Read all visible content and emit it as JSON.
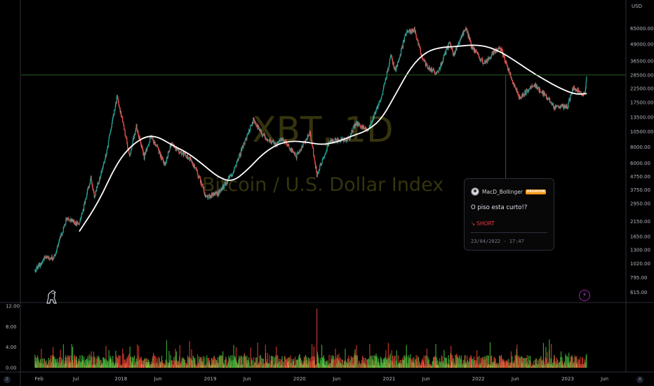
{
  "watermark": {
    "symbol": "XBT, 1D",
    "description": "Bitcoin / U.S. Dollar Index"
  },
  "idea": {
    "author": "MacD_Bollinger",
    "badge": "PREMIUM",
    "title": "O piso esta curto!?",
    "direction": "SHORT",
    "direction_glyph": "↘",
    "date": "23/04/2022 - 17:47"
  },
  "price_axis": {
    "currency": "USD",
    "labels": [
      "65000.00",
      "49000.00",
      "36500.00",
      "28500.00",
      "22500.00",
      "17500.00",
      "13500.00",
      "10500.00",
      "8000.00",
      "6000.00",
      "4750.00",
      "3750.00",
      "2950.00",
      "2150.00",
      "1650.00",
      "1300.00",
      "1020.00",
      "795.00",
      "615.00"
    ]
  },
  "volume_axis": {
    "labels": [
      "12.00",
      "8.00",
      "4.00",
      "0.00"
    ]
  },
  "time_axis": {
    "labels": [
      "Feb",
      "Jul",
      "2018",
      "Jun",
      "2019",
      "Jun",
      "2020",
      "Jun",
      "2021",
      "Jun",
      "2022",
      "Jun",
      "2023",
      "Jun"
    ]
  },
  "corner_buttons": {
    "left": "Z",
    "right": "A"
  },
  "colors": {
    "up": "#26a69a",
    "down": "#ef5350",
    "up_vol": "#3fae3a",
    "down_vol": "#d43a2e",
    "ma": "#ffffff",
    "crosshair": "#2e6b2e",
    "background": "#000000"
  },
  "chart_data": {
    "type": "candlestick",
    "symbol": "XBT",
    "interval": "1D",
    "y_scale": "log",
    "ylim": [
      560,
      90000
    ],
    "x_range": [
      "2017-01-01",
      "2023-07-01"
    ],
    "grid": false,
    "price_path": [
      {
        "date": "2017-01-15",
        "close": 900
      },
      {
        "date": "2017-03-01",
        "close": 1150
      },
      {
        "date": "2017-04-01",
        "close": 1100
      },
      {
        "date": "2017-05-25",
        "close": 2300
      },
      {
        "date": "2017-07-15",
        "close": 2000
      },
      {
        "date": "2017-09-01",
        "close": 4700
      },
      {
        "date": "2017-09-15",
        "close": 3300
      },
      {
        "date": "2017-11-01",
        "close": 7000
      },
      {
        "date": "2017-12-17",
        "close": 19500
      },
      {
        "date": "2018-02-06",
        "close": 6900
      },
      {
        "date": "2018-03-05",
        "close": 11500
      },
      {
        "date": "2018-04-06",
        "close": 6700
      },
      {
        "date": "2018-05-05",
        "close": 9800
      },
      {
        "date": "2018-06-28",
        "close": 5900
      },
      {
        "date": "2018-07-25",
        "close": 8300
      },
      {
        "date": "2018-10-15",
        "close": 6400
      },
      {
        "date": "2018-11-20",
        "close": 4500
      },
      {
        "date": "2018-12-15",
        "close": 3300
      },
      {
        "date": "2019-02-01",
        "close": 3500
      },
      {
        "date": "2019-04-02",
        "close": 5000
      },
      {
        "date": "2019-06-26",
        "close": 12900
      },
      {
        "date": "2019-08-01",
        "close": 10000
      },
      {
        "date": "2019-09-25",
        "close": 8300
      },
      {
        "date": "2019-10-26",
        "close": 9300
      },
      {
        "date": "2019-12-17",
        "close": 6700
      },
      {
        "date": "2020-02-13",
        "close": 10300
      },
      {
        "date": "2020-03-12",
        "close": 4900
      },
      {
        "date": "2020-05-01",
        "close": 8800
      },
      {
        "date": "2020-07-20",
        "close": 9200
      },
      {
        "date": "2020-08-17",
        "close": 12200
      },
      {
        "date": "2020-10-08",
        "close": 10800
      },
      {
        "date": "2020-11-30",
        "close": 19000
      },
      {
        "date": "2021-01-08",
        "close": 40000
      },
      {
        "date": "2021-01-27",
        "close": 30500
      },
      {
        "date": "2021-03-13",
        "close": 61000
      },
      {
        "date": "2021-04-14",
        "close": 63500
      },
      {
        "date": "2021-05-19",
        "close": 37000
      },
      {
        "date": "2021-06-22",
        "close": 31000
      },
      {
        "date": "2021-07-20",
        "close": 30000
      },
      {
        "date": "2021-09-06",
        "close": 51000
      },
      {
        "date": "2021-09-21",
        "close": 40500
      },
      {
        "date": "2021-11-10",
        "close": 67000
      },
      {
        "date": "2021-12-04",
        "close": 47000
      },
      {
        "date": "2022-01-22",
        "close": 35000
      },
      {
        "date": "2022-03-29",
        "close": 47500
      },
      {
        "date": "2022-05-12",
        "close": 28500
      },
      {
        "date": "2022-06-18",
        "close": 19000
      },
      {
        "date": "2022-08-15",
        "close": 24400
      },
      {
        "date": "2022-10-10",
        "close": 19000
      },
      {
        "date": "2022-11-09",
        "close": 16000
      },
      {
        "date": "2022-12-31",
        "close": 16500
      },
      {
        "date": "2023-01-25",
        "close": 23000
      },
      {
        "date": "2023-03-10",
        "close": 20000
      },
      {
        "date": "2023-03-20",
        "close": 28000
      }
    ],
    "moving_average": [
      {
        "date": "2017-07-15",
        "value": 1800
      },
      {
        "date": "2017-10-01",
        "value": 3000
      },
      {
        "date": "2017-12-15",
        "value": 6000
      },
      {
        "date": "2018-02-15",
        "value": 8300
      },
      {
        "date": "2018-04-15",
        "value": 9700
      },
      {
        "date": "2018-06-01",
        "value": 9600
      },
      {
        "date": "2018-08-01",
        "value": 8200
      },
      {
        "date": "2018-10-01",
        "value": 7200
      },
      {
        "date": "2018-12-01",
        "value": 5900
      },
      {
        "date": "2019-02-01",
        "value": 4700
      },
      {
        "date": "2019-04-01",
        "value": 4300
      },
      {
        "date": "2019-06-01",
        "value": 5300
      },
      {
        "date": "2019-08-01",
        "value": 7000
      },
      {
        "date": "2019-10-01",
        "value": 8400
      },
      {
        "date": "2019-12-01",
        "value": 8900
      },
      {
        "date": "2020-02-01",
        "value": 8700
      },
      {
        "date": "2020-04-01",
        "value": 8300
      },
      {
        "date": "2020-06-01",
        "value": 8700
      },
      {
        "date": "2020-08-01",
        "value": 9700
      },
      {
        "date": "2020-10-01",
        "value": 10600
      },
      {
        "date": "2020-12-01",
        "value": 13000
      },
      {
        "date": "2021-02-01",
        "value": 21000
      },
      {
        "date": "2021-04-01",
        "value": 33000
      },
      {
        "date": "2021-06-01",
        "value": 43000
      },
      {
        "date": "2021-08-01",
        "value": 46500
      },
      {
        "date": "2021-10-01",
        "value": 47000
      },
      {
        "date": "2021-12-01",
        "value": 48500
      },
      {
        "date": "2022-02-01",
        "value": 47500
      },
      {
        "date": "2022-04-01",
        "value": 43000
      },
      {
        "date": "2022-06-01",
        "value": 36500
      },
      {
        "date": "2022-08-01",
        "value": 30500
      },
      {
        "date": "2022-10-01",
        "value": 26000
      },
      {
        "date": "2022-12-01",
        "value": 22500
      },
      {
        "date": "2023-02-01",
        "value": 20200
      },
      {
        "date": "2023-03-20",
        "value": 20500
      }
    ],
    "horizontal_line": 28500,
    "vertical_marker_date": "2022-04-23",
    "volume_ylim": [
      0,
      12
    ],
    "volume_spike": {
      "date": "2020-03-12",
      "value": 11.5
    }
  }
}
